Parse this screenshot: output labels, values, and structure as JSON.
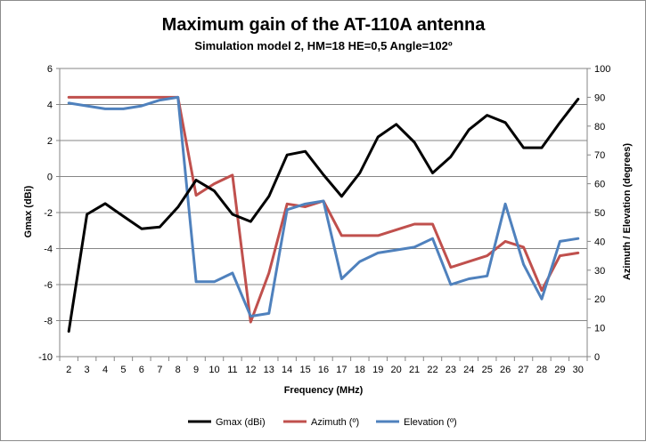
{
  "chart_data": {
    "type": "line",
    "title": "Maximum gain of the AT-110A antenna",
    "subtitle": "Simulation model 2, HM=18 HE=0,5 Angle=102º",
    "xlabel": "Frequency (MHz)",
    "ylabel": "Gmax (dBi)",
    "y2label": "Azimuth / Elevation (degrees)",
    "x": [
      2,
      3,
      4,
      5,
      6,
      7,
      8,
      9,
      10,
      11,
      12,
      13,
      14,
      15,
      16,
      17,
      18,
      19,
      20,
      21,
      22,
      23,
      24,
      25,
      26,
      27,
      28,
      29,
      30
    ],
    "ylim": [
      -10,
      6
    ],
    "yticks": [
      -10,
      -8,
      -6,
      -4,
      -2,
      0,
      2,
      4,
      6
    ],
    "y2lim": [
      0,
      100
    ],
    "y2ticks": [
      0,
      10,
      20,
      30,
      40,
      50,
      60,
      70,
      80,
      90,
      100
    ],
    "grid": true,
    "legend": "bottom",
    "series": [
      {
        "name": "Gmax (dBi)",
        "axis": "left",
        "color": "#000000",
        "values": [
          -8.6,
          -2.1,
          -1.5,
          -2.2,
          -2.9,
          -2.8,
          -1.7,
          -0.2,
          -0.8,
          -2.1,
          -2.5,
          -1.1,
          1.2,
          1.4,
          0.1,
          -1.1,
          0.2,
          2.2,
          2.9,
          1.9,
          0.2,
          1.1,
          2.6,
          3.4,
          3.0,
          1.6,
          1.6,
          3.0,
          4.3
        ]
      },
      {
        "name": "Azimuth (º)",
        "axis": "right",
        "color": "#c0504d",
        "values": [
          90,
          90,
          90,
          90,
          90,
          90,
          90,
          56,
          60,
          63,
          12,
          29,
          53,
          52,
          54,
          42,
          42,
          42,
          44,
          46,
          46,
          31,
          33,
          35,
          40,
          38,
          23,
          35,
          36
        ]
      },
      {
        "name": "Elevation (º)",
        "axis": "right",
        "color": "#4f81bd",
        "values": [
          88,
          87,
          86,
          86,
          87,
          89,
          90,
          26,
          26,
          29,
          14,
          15,
          51,
          53,
          54,
          27,
          33,
          36,
          37,
          38,
          41,
          25,
          27,
          28,
          53,
          32,
          20,
          40,
          41
        ]
      }
    ]
  }
}
